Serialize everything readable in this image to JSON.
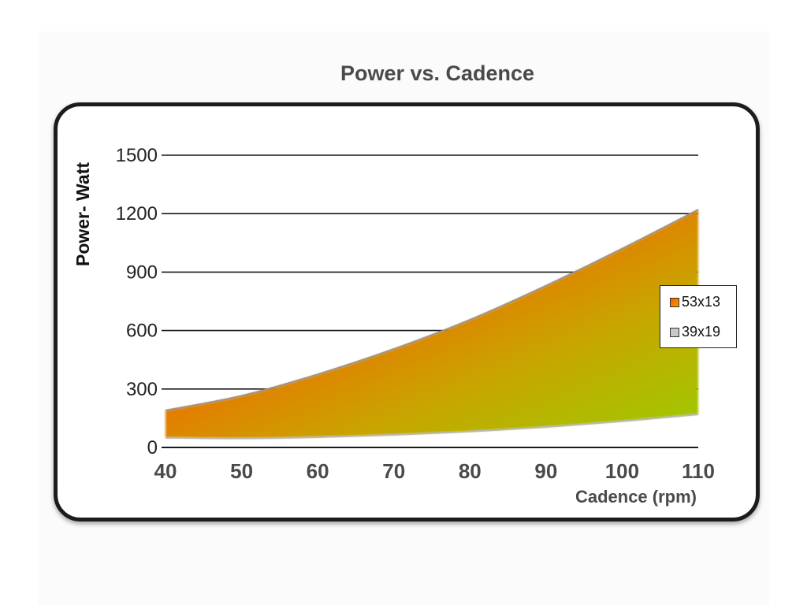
{
  "chart_data": {
    "type": "area",
    "title": "Power vs. Cadence",
    "xlabel": "Cadence (rpm)",
    "ylabel": "Power- Watt",
    "xlim": [
      40,
      110
    ],
    "ylim": [
      0,
      1500
    ],
    "x_ticks": [
      "40",
      "50",
      "60",
      "70",
      "80",
      "90",
      "100",
      "110"
    ],
    "y_ticks": [
      "0",
      "300",
      "600",
      "900",
      "1200",
      "1500"
    ],
    "grid": true,
    "legend_position": "right",
    "fill_gradient": [
      "#ff2a00",
      "#f06a00",
      "#c9a400",
      "#9ccc00"
    ],
    "series": [
      {
        "name": "53x13",
        "color": "#e86a10",
        "x": [
          40,
          50,
          60,
          70,
          80,
          90,
          100,
          110
        ],
        "values": [
          190,
          265,
          375,
          505,
          655,
          830,
          1020,
          1220
        ]
      },
      {
        "name": "39x19",
        "color": "#c8c8c8",
        "x": [
          40,
          50,
          60,
          70,
          80,
          90,
          100,
          110
        ],
        "values": [
          50,
          47,
          53,
          65,
          82,
          105,
          135,
          170
        ]
      }
    ]
  }
}
